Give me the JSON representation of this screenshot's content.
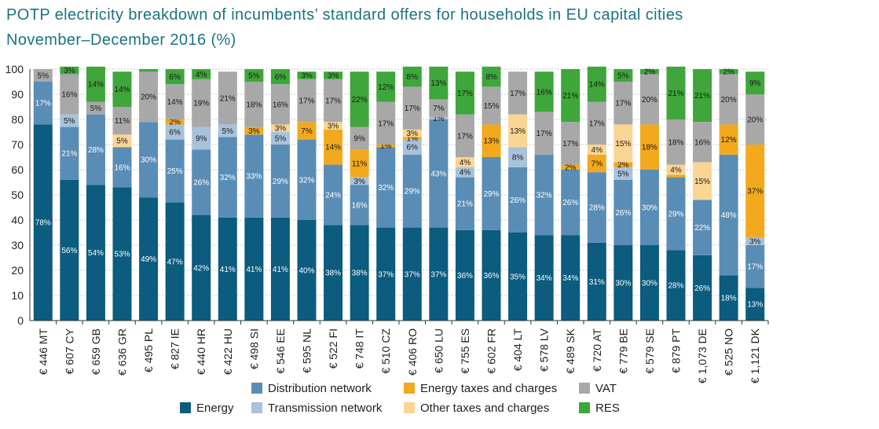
{
  "chart_data": {
    "type": "bar",
    "stacked": true,
    "title": "POTP electricity breakdown of incumbents’ standard offers for households in EU capital cities",
    "subtitle": "November–December 2016 (%)",
    "ylim": [
      0,
      100
    ],
    "yticks": [
      0,
      10,
      20,
      30,
      40,
      50,
      60,
      70,
      80,
      90,
      100
    ],
    "grid": true,
    "legend_position": "bottom",
    "categories": [
      "€ 446 MT",
      "€ 607 CY",
      "€ 659 GB",
      "€ 636 GR",
      "€ 495 PL",
      "€ 827 IE",
      "€ 440 HR",
      "€ 422 HU",
      "€ 498 SI",
      "€ 546 EE",
      "€ 595 NL",
      "€ 522 FI",
      "€ 748 IT",
      "€ 510 CZ",
      "€ 406 RO",
      "€ 650 LU",
      "€ 755 ES",
      "€ 602 FR",
      "€ 404 LT",
      "€ 578 LV",
      "€ 489 SK",
      "€ 720 AT",
      "€ 779 BE",
      "€ 579 SE",
      "€ 879 PT",
      "€ 1,073 DE",
      "€ 525 NO",
      "€ 1,121 DK"
    ],
    "series": [
      {
        "name": "Energy",
        "color": "#0b5c7e",
        "label_color": "#ffffff",
        "values": [
          78,
          56,
          54,
          53,
          49,
          47,
          42,
          41,
          41,
          41,
          40,
          38,
          38,
          37,
          37,
          37,
          36,
          36,
          35,
          34,
          34,
          31,
          30,
          30,
          28,
          26,
          18,
          13
        ],
        "labels": [
          "78%",
          "56%",
          "54%",
          "53%",
          "49%",
          "47%",
          "42%",
          "41%",
          "41%",
          "41%",
          "40%",
          "38%",
          "38%",
          "37%",
          "37%",
          "37%",
          "36%",
          "36%",
          "35%",
          "34%",
          "34%",
          "31%",
          "30%",
          "30%",
          "28%",
          "26%",
          "18%",
          "13%"
        ]
      },
      {
        "name": "Distribution network",
        "color": "#5a8db5",
        "label_color": "#ffffff",
        "values": [
          17,
          21,
          28,
          16,
          30,
          25,
          26,
          32,
          33,
          29,
          32,
          24,
          16,
          32,
          29,
          43,
          21,
          29,
          26,
          32,
          26,
          28,
          26,
          30,
          29,
          22,
          48,
          17
        ],
        "labels": [
          "17%",
          "21%",
          "28%",
          "16%",
          "30%",
          "25%",
          "26%",
          "32%",
          "33%",
          "29%",
          "32%",
          "24%",
          "16%",
          "32%",
          "29%",
          "43%",
          "21%",
          "29%",
          "26%",
          "32%",
          "26%",
          "28%",
          "26%",
          "30%",
          "29%",
          "22%",
          "48%",
          "17%"
        ]
      },
      {
        "name": "Transmission network",
        "color": "#a8c2db",
        "label_color": "#1a1a1a",
        "values": [
          0,
          5,
          0,
          0,
          0,
          6,
          9,
          5,
          0,
          5,
          0,
          0,
          3,
          0,
          6,
          1,
          4,
          0,
          8,
          0,
          0,
          0,
          5,
          0,
          0,
          0,
          0,
          3
        ],
        "labels": [
          "",
          "5%",
          "",
          "",
          "",
          "6%",
          "9%",
          "5%",
          "",
          "5%",
          "",
          "",
          "3%",
          "",
          "6%",
          "1%",
          "4%",
          "",
          "8%",
          "",
          "",
          "",
          "5%",
          "",
          "",
          "",
          "",
          "3%"
        ]
      },
      {
        "name": "Energy taxes and charges",
        "color": "#f2a91e",
        "label_color": "#1a1a1a",
        "values": [
          0,
          0,
          0,
          0,
          0,
          2,
          0,
          0,
          3,
          0,
          7,
          14,
          11,
          1,
          1,
          0,
          0,
          13,
          0,
          0,
          2,
          7,
          2,
          18,
          1,
          0,
          12,
          37
        ],
        "labels": [
          "",
          "",
          "",
          "",
          "",
          "2%",
          "",
          "",
          "3%",
          "",
          "7%",
          "14%",
          "11%",
          "1%",
          "1%",
          "",
          "",
          "13%",
          "",
          "",
          "2%",
          "7%",
          "2%",
          "18%",
          "",
          "",
          "12%",
          "37%"
        ]
      },
      {
        "name": "Other taxes and charges",
        "color": "#fad594",
        "label_color": "#1a1a1a",
        "values": [
          0,
          0,
          0,
          5,
          0,
          0,
          0,
          0,
          0,
          3,
          0,
          3,
          0,
          0,
          3,
          0,
          4,
          0,
          13,
          0,
          0,
          4,
          15,
          0,
          4,
          15,
          0,
          0
        ],
        "labels": [
          "",
          "",
          "",
          "5%",
          "",
          "",
          "",
          "",
          "",
          "3%",
          "",
          "3%",
          "",
          "",
          "3%",
          "",
          "4%",
          "",
          "13%",
          "",
          "",
          "4%",
          "15%",
          "",
          "4%",
          "15%",
          "",
          ""
        ]
      },
      {
        "name": "VAT",
        "color": "#a8a8a8",
        "label_color": "#1a1a1a",
        "values": [
          5,
          16,
          5,
          11,
          20,
          14,
          19,
          21,
          18,
          16,
          17,
          17,
          9,
          17,
          17,
          7,
          17,
          15,
          17,
          17,
          17,
          17,
          17,
          20,
          18,
          16,
          20,
          20
        ],
        "labels": [
          "5%",
          "16%",
          "5%",
          "11%",
          "20%",
          "14%",
          "19%",
          "21%",
          "18%",
          "16%",
          "17%",
          "17%",
          "9%",
          "17%",
          "17%",
          "7%",
          "17%",
          "15%",
          "17%",
          "17%",
          "17%",
          "17%",
          "17%",
          "20%",
          "18%",
          "16%",
          "20%",
          "20%"
        ]
      },
      {
        "name": "RES",
        "color": "#3ea63a",
        "label_color": "#1a1a1a",
        "values": [
          0,
          3,
          14,
          14,
          1,
          6,
          4,
          0,
          5,
          6,
          3,
          3,
          22,
          12,
          8,
          13,
          17,
          8,
          0,
          16,
          21,
          14,
          5,
          2,
          21,
          21,
          2,
          9
        ],
        "labels": [
          "",
          "3%",
          "14%",
          "14%",
          "",
          "6%",
          "4%",
          "",
          "5%",
          "6%",
          "3%",
          "3%",
          "22%",
          "12%",
          "8%",
          "13%",
          "17%",
          "8%",
          "",
          "16%",
          "21%",
          "14%",
          "5%",
          "2%",
          "21%",
          "21%",
          "2%",
          "9%"
        ]
      }
    ],
    "legend": [
      {
        "name": "Energy",
        "color": "#0b5c7e"
      },
      {
        "name": "Distribution network",
        "color": "#5a8db5"
      },
      {
        "name": "Transmission network",
        "color": "#a8c2db"
      },
      {
        "name": "Energy taxes and charges",
        "color": "#f2a91e"
      },
      {
        "name": "Other taxes and charges",
        "color": "#fad594"
      },
      {
        "name": "VAT",
        "color": "#a8a8a8"
      },
      {
        "name": "RES",
        "color": "#3ea63a"
      }
    ]
  }
}
